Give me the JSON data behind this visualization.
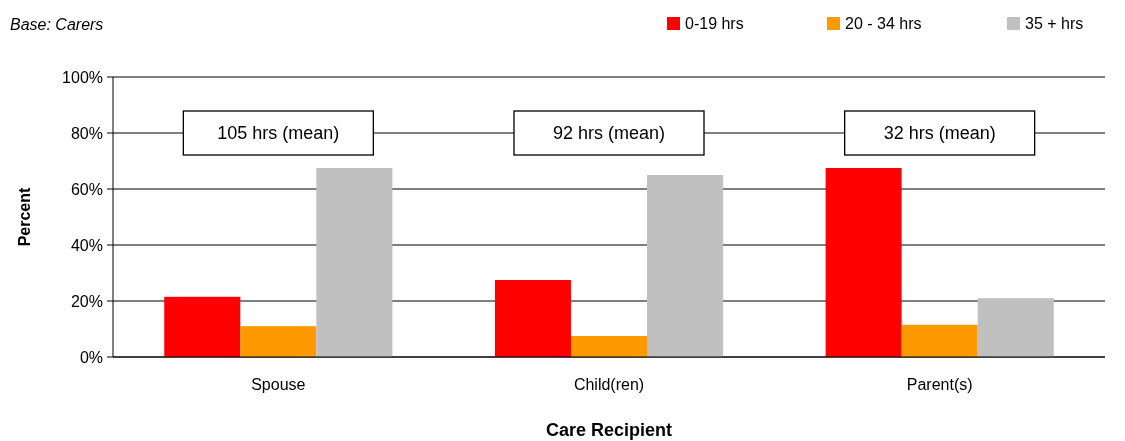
{
  "chart_data": {
    "type": "bar",
    "subtitle": "Base: Carers",
    "xlabel": "Care Recipient",
    "ylabel": "Percent",
    "categories": [
      "Spouse",
      "Child(ren)",
      "Parent(s)"
    ],
    "series": [
      {
        "name": "0-19 hrs",
        "color": "#ff0000",
        "values": [
          21.5,
          27.5,
          67.5
        ]
      },
      {
        "name": "20 - 34 hrs",
        "color": "#ff9900",
        "values": [
          11,
          7.5,
          11.5
        ]
      },
      {
        "name": "35 + hrs",
        "color": "#c0c0c0",
        "values": [
          67.5,
          65,
          21
        ]
      }
    ],
    "ylim": [
      0,
      100
    ],
    "yticks": [
      {
        "value": 0,
        "label": "0%"
      },
      {
        "value": 20,
        "label": "20%"
      },
      {
        "value": 40,
        "label": "40%"
      },
      {
        "value": 60,
        "label": "60%"
      },
      {
        "value": 80,
        "label": "80%"
      },
      {
        "value": 100,
        "label": "100%"
      }
    ],
    "grid": "y",
    "legend": "top right",
    "annotations": [
      "105 hrs (mean)",
      "92 hrs (mean)",
      "32 hrs (mean)"
    ]
  }
}
